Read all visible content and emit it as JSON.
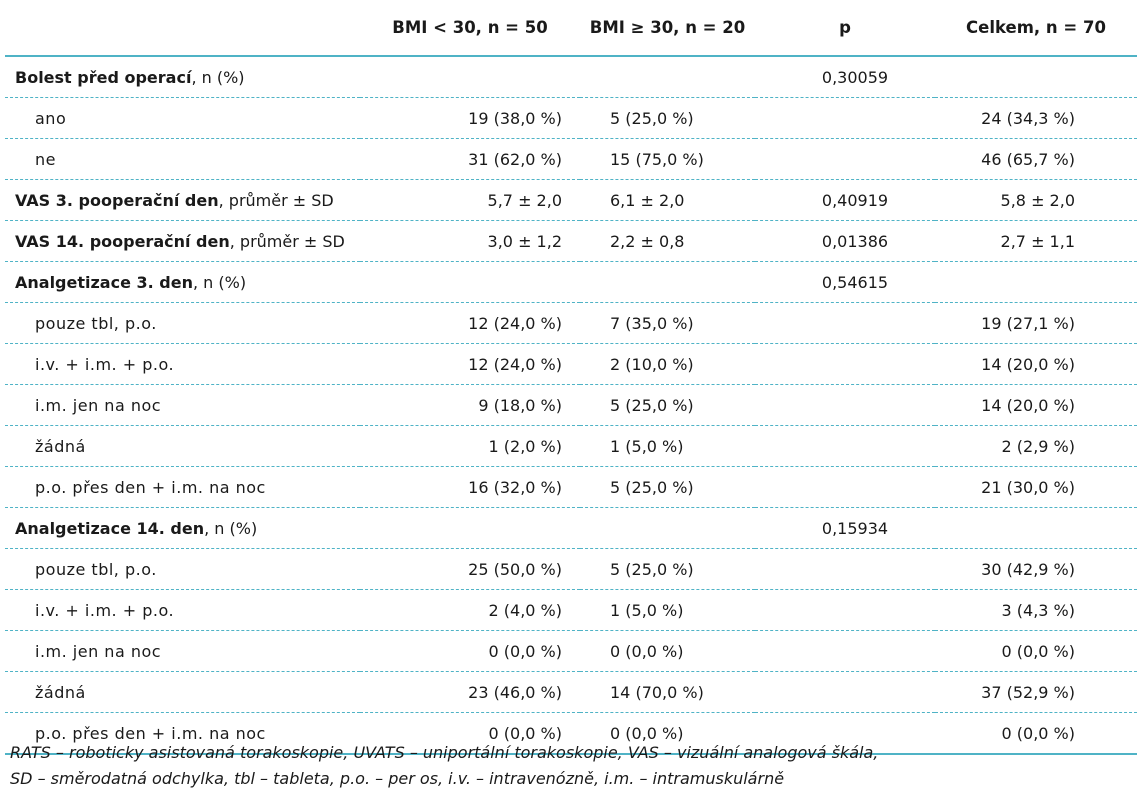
{
  "headers": [
    "",
    "BMI < 30, n = 50",
    "BMI ≥ 30, n = 20",
    "p",
    "Celkem, n = 70"
  ],
  "rows": [
    {
      "bold": "Bolest před operací",
      "rest": ", n (%)",
      "sub": false,
      "c1": "",
      "c2": "",
      "c3": "0,30059",
      "c4": ""
    },
    {
      "text": "ano",
      "sub": true,
      "c1": "19 (38,0 %)",
      "c2": "5 (25,0 %)",
      "c3": "",
      "c4": "24 (34,3 %)"
    },
    {
      "text": "ne",
      "sub": true,
      "c1": "31 (62,0 %)",
      "c2": "15 (75,0 %)",
      "c3": "",
      "c4": "46 (65,7 %)"
    },
    {
      "bold": "VAS 3. pooperační den",
      "rest": ", průměr ± SD",
      "sub": false,
      "c1": "5,7 ± 2,0",
      "c2": "6,1 ± 2,0",
      "c3": "0,40919",
      "c4": "5,8 ± 2,0"
    },
    {
      "bold": "VAS 14. pooperační den",
      "rest": ", průměr ± SD",
      "sub": false,
      "c1": "3,0 ± 1,2",
      "c2": "2,2 ± 0,8",
      "c3": "0,01386",
      "c4": "2,7 ± 1,1"
    },
    {
      "bold": "Analgetizace 3. den",
      "rest": ", n (%)",
      "sub": false,
      "c1": "",
      "c2": "",
      "c3": "0,54615",
      "c4": ""
    },
    {
      "text": "pouze tbl, p.o.",
      "sub": true,
      "c1": "12 (24,0 %)",
      "c2": "7 (35,0 %)",
      "c3": "",
      "c4": "19 (27,1 %)"
    },
    {
      "text": "i.v. + i.m. + p.o.",
      "sub": true,
      "c1": "12 (24,0 %)",
      "c2": "2 (10,0 %)",
      "c3": "",
      "c4": "14 (20,0 %)"
    },
    {
      "text": "i.m. jen na noc",
      "sub": true,
      "c1": "9 (18,0 %)",
      "c2": "5 (25,0 %)",
      "c3": "",
      "c4": "14 (20,0 %)"
    },
    {
      "text": "žádná",
      "sub": true,
      "c1": "1 (2,0 %)",
      "c2": "1 (5,0 %)",
      "c3": "",
      "c4": "2 (2,9 %)"
    },
    {
      "text": "p.o. přes den + i.m. na noc",
      "sub": true,
      "c1": "16 (32,0 %)",
      "c2": "5 (25,0 %)",
      "c3": "",
      "c4": "21 (30,0 %)"
    },
    {
      "bold": "Analgetizace 14. den",
      "rest": ", n (%)",
      "sub": false,
      "c1": "",
      "c2": "",
      "c3": "0,15934",
      "c4": ""
    },
    {
      "text": "pouze tbl, p.o.",
      "sub": true,
      "c1": "25 (50,0 %)",
      "c2": "5 (25,0 %)",
      "c3": "",
      "c4": "30 (42,9 %)"
    },
    {
      "text": "i.v. + i.m. + p.o.",
      "sub": true,
      "c1": "2 (4,0 %)",
      "c2": "1 (5,0 %)",
      "c3": "",
      "c4": "3 (4,3 %)"
    },
    {
      "text": "i.m. jen na noc",
      "sub": true,
      "c1": "0 (0,0 %)",
      "c2": "0 (0,0 %)",
      "c3": "",
      "c4": "0 (0,0 %)"
    },
    {
      "text": "žádná",
      "sub": true,
      "c1": "23 (46,0 %)",
      "c2": "14 (70,0 %)",
      "c3": "",
      "c4": "37 (52,9 %)"
    },
    {
      "text": "p.o. přes den + i.m. na noc",
      "sub": true,
      "c1": "0 (0,0 %)",
      "c2": "0 (0,0 %)",
      "c3": "",
      "c4": "0 (0,0 %)"
    }
  ],
  "footnote": [
    "RATS – roboticky asistovaná torakoskopie, UVATS – uniportální torakoskopie, VAS – vizuální analogová škála,",
    "SD – směrodatná odchylka, tbl – tableta, p.o. – per os, i.v. – intravenózně, i.m. – intramuskulárně"
  ],
  "colors": {
    "rule": "#4fb3c6",
    "text": "#1a1a1a"
  }
}
